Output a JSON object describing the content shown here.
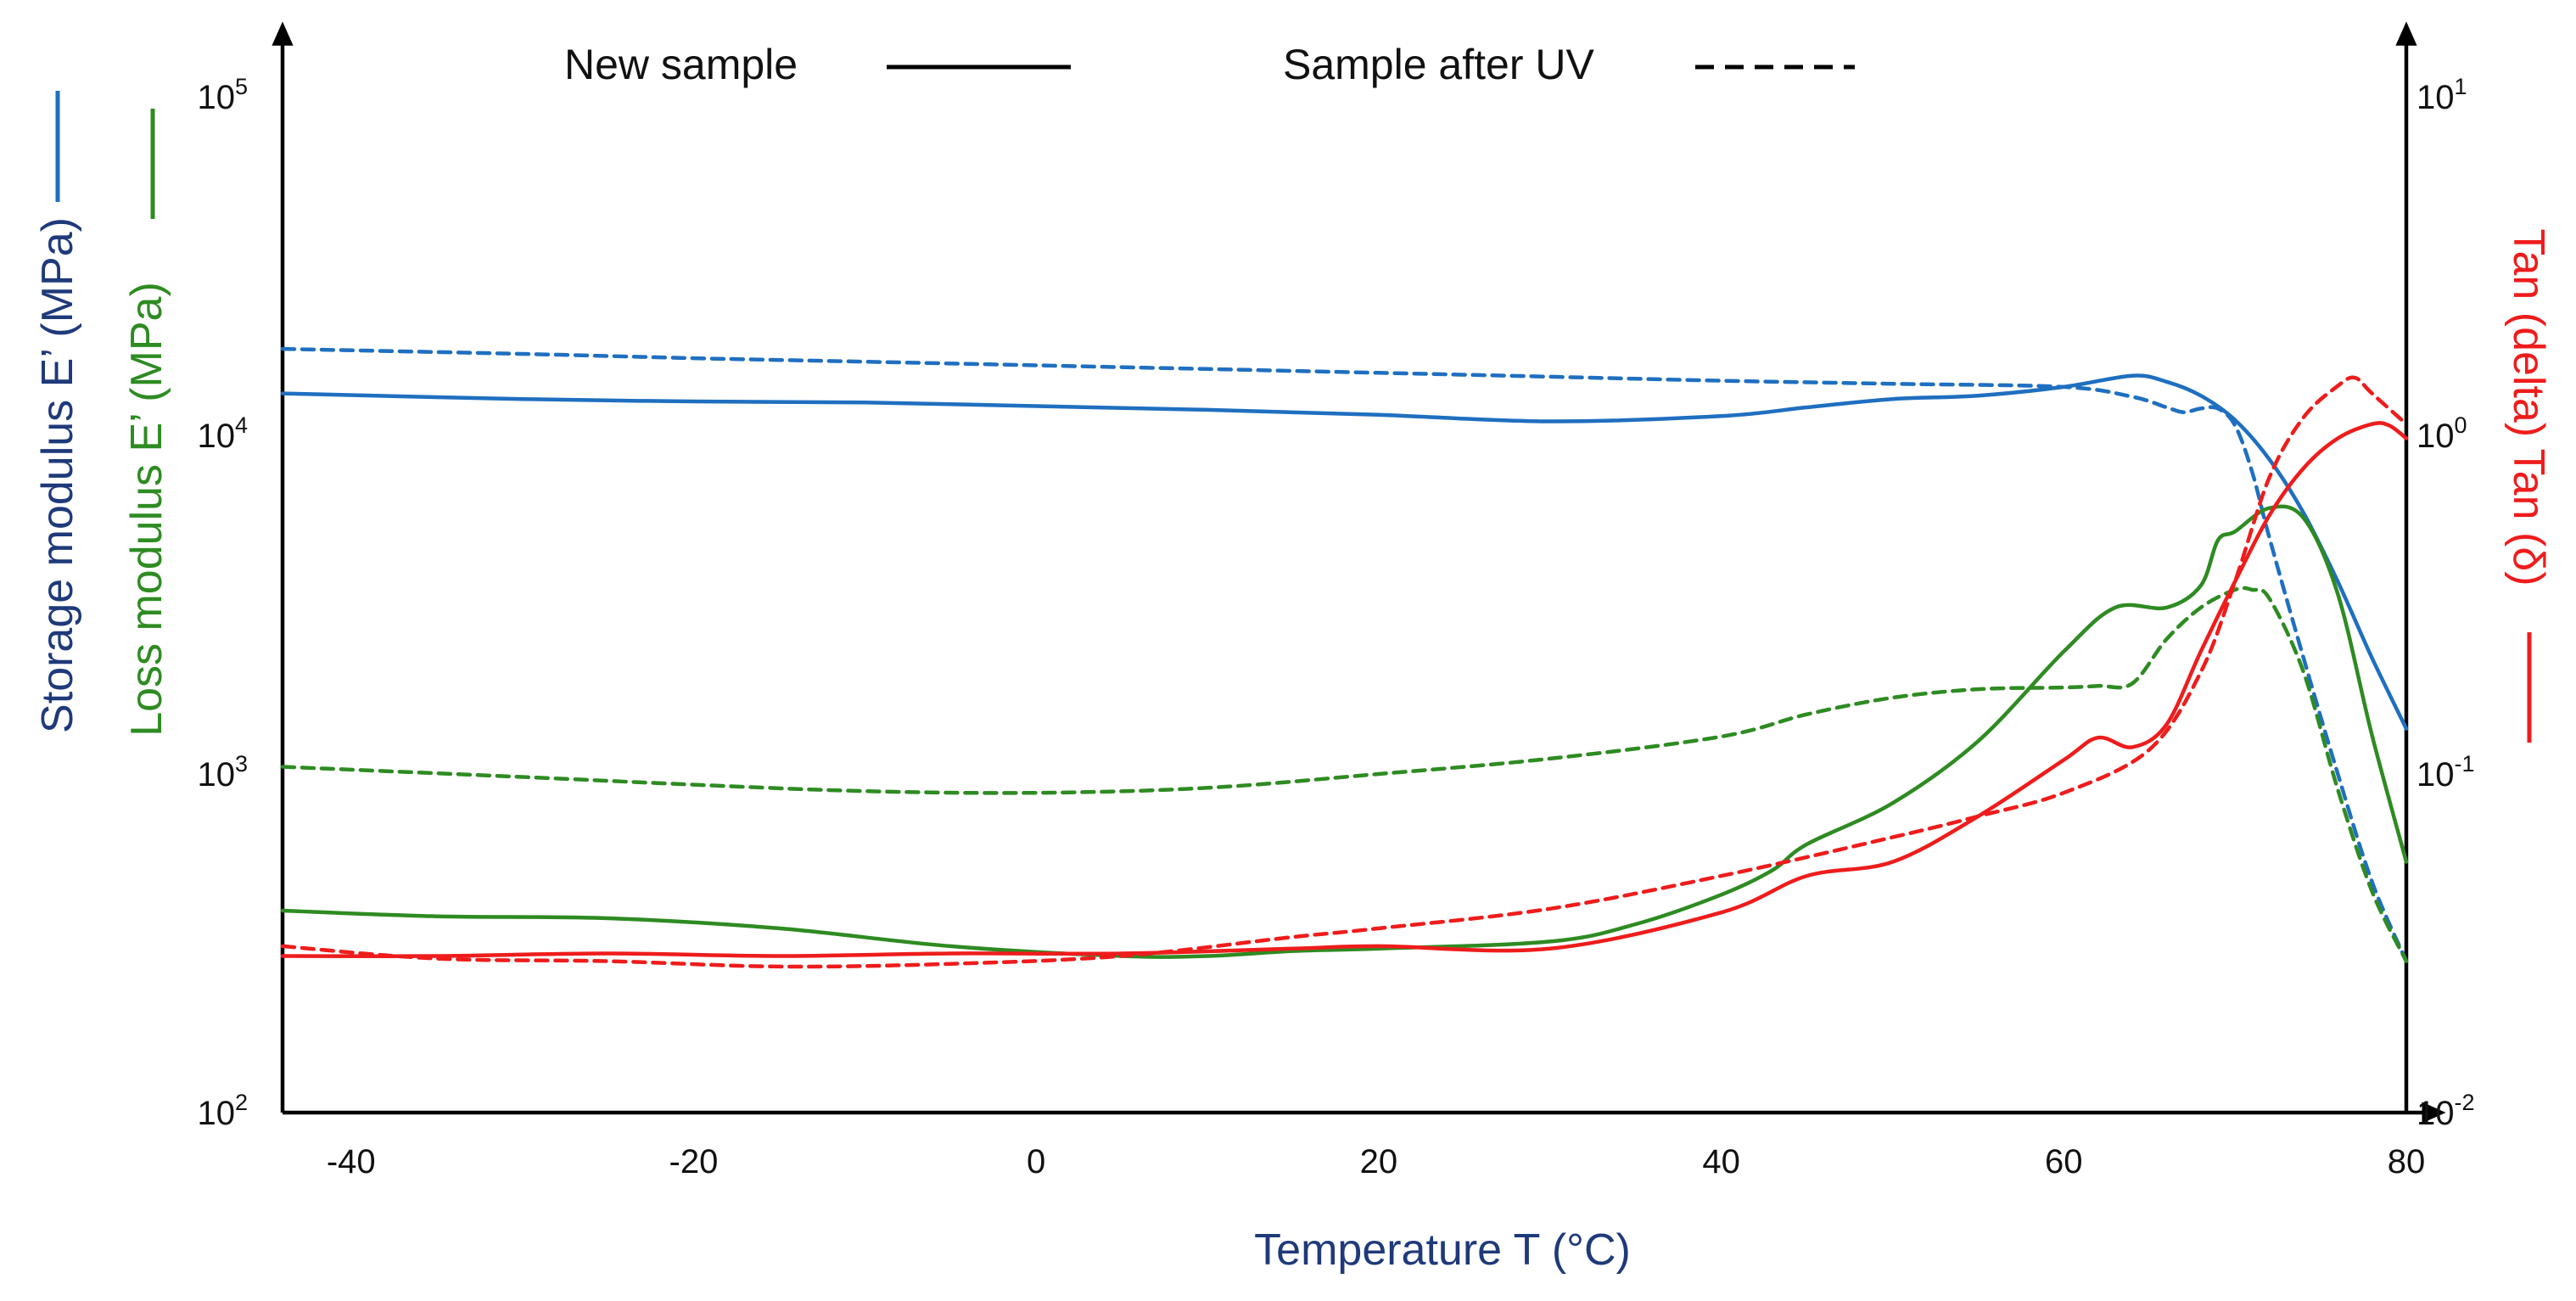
{
  "chart_data": {
    "type": "line",
    "title": "",
    "legend": {
      "solid_label": "New sample",
      "dashed_label": "Sample after UV",
      "placement": "top-center"
    },
    "colors": {
      "storage": "#1f6fc0",
      "loss": "#2e8b22",
      "tan": "#ee1c1c",
      "axis": "#000000",
      "title_navy": "#1f3a7a"
    },
    "xlabel": "Temperature T (°C)",
    "ylabel_left_storage": "Storage modulus E’ (MPa)",
    "ylabel_left_loss": "Loss modulus E’ (MPa)",
    "ylabel_right": "Tan (delta) Tan (δ)",
    "xlim": [
      -44,
      80
    ],
    "ylim_left": [
      100,
      100000
    ],
    "ylim_right": [
      0.01,
      10
    ],
    "yscale": "log",
    "x_ticks": [
      {
        "value": -40,
        "label": "-40"
      },
      {
        "value": -20,
        "label": "-20"
      },
      {
        "value": 0,
        "label": "0"
      },
      {
        "value": 20,
        "label": "20"
      },
      {
        "value": 40,
        "label": "40"
      },
      {
        "value": 60,
        "label": "60"
      },
      {
        "value": 80,
        "label": "80"
      }
    ],
    "y_left_ticks": [
      {
        "value": 100,
        "base": "10",
        "exp": "2"
      },
      {
        "value": 1000,
        "base": "10",
        "exp": "3"
      },
      {
        "value": 10000,
        "base": "10",
        "exp": "4"
      },
      {
        "value": 100000,
        "base": "10",
        "exp": "5"
      }
    ],
    "y_right_ticks": [
      {
        "value": 0.01,
        "base": "10",
        "exp": "-2"
      },
      {
        "value": 0.1,
        "base": "10",
        "exp": "-1"
      },
      {
        "value": 1,
        "base": "10",
        "exp": "0"
      },
      {
        "value": 10,
        "base": "10",
        "exp": "1"
      }
    ],
    "series": [
      {
        "name": "Storage modulus - New sample",
        "axis": "left",
        "color_key": "storage",
        "style": "solid",
        "x": [
          -44,
          -30,
          -20,
          -10,
          0,
          10,
          20,
          30,
          40,
          45,
          50,
          55,
          60,
          64,
          66,
          68,
          70,
          72,
          74,
          76,
          78,
          80
        ],
        "y": [
          13300,
          12800,
          12600,
          12500,
          12200,
          11900,
          11500,
          11000,
          11400,
          12100,
          12800,
          13100,
          13900,
          15000,
          14400,
          13100,
          11100,
          8500,
          5900,
          3700,
          2200,
          1360
        ]
      },
      {
        "name": "Storage modulus - Sample after UV",
        "axis": "left",
        "color_key": "storage",
        "style": "dashed",
        "x": [
          -44,
          -30,
          -20,
          -10,
          0,
          10,
          20,
          30,
          40,
          50,
          60,
          64,
          66,
          67,
          68,
          69,
          70,
          71,
          72,
          74,
          76,
          78,
          80
        ],
        "y": [
          18000,
          17400,
          16900,
          16500,
          16100,
          15700,
          15300,
          14900,
          14500,
          14200,
          13900,
          13000,
          12100,
          11700,
          12000,
          12000,
          10700,
          7800,
          5000,
          2200,
          1000,
          480,
          280
        ]
      },
      {
        "name": "Loss modulus - New sample",
        "axis": "left",
        "color_key": "loss",
        "style": "solid",
        "x": [
          -44,
          -35,
          -25,
          -15,
          -5,
          5,
          10,
          15,
          20,
          30,
          35,
          40,
          43,
          45,
          50,
          55,
          60,
          63,
          66,
          68,
          69,
          70,
          72,
          74,
          76,
          78,
          80
        ],
        "y": [
          395,
          380,
          375,
          350,
          310,
          290,
          290,
          300,
          305,
          320,
          360,
          440,
          520,
          620,
          820,
          1250,
          2300,
          3100,
          3100,
          3600,
          4900,
          5200,
          6100,
          5700,
          3400,
          1300,
          550
        ]
      },
      {
        "name": "Loss modulus - Sample after UV",
        "axis": "left",
        "color_key": "loss",
        "style": "dashed",
        "x": [
          -44,
          -30,
          -20,
          -10,
          0,
          10,
          20,
          30,
          40,
          45,
          50,
          55,
          60,
          62,
          64,
          66,
          68,
          70,
          71,
          72,
          74,
          76,
          78,
          80
        ],
        "y": [
          1050,
          980,
          930,
          890,
          880,
          910,
          1000,
          1110,
          1290,
          1500,
          1680,
          1780,
          1800,
          1820,
          1850,
          2500,
          3100,
          3500,
          3500,
          3300,
          2000,
          900,
          450,
          280
        ]
      },
      {
        "name": "Tan delta - New sample",
        "axis": "right",
        "color_key": "tan",
        "style": "solid",
        "x": [
          -44,
          -35,
          -25,
          -15,
          -5,
          5,
          15,
          20,
          30,
          40,
          45,
          50,
          55,
          60,
          62,
          64,
          66,
          68,
          70,
          72,
          74,
          76,
          78,
          79,
          80
        ],
        "y": [
          0.029,
          0.029,
          0.0295,
          0.029,
          0.0295,
          0.0295,
          0.0305,
          0.031,
          0.0305,
          0.039,
          0.05,
          0.055,
          0.075,
          0.11,
          0.128,
          0.12,
          0.14,
          0.23,
          0.37,
          0.58,
          0.8,
          0.98,
          1.08,
          1.07,
          0.98
        ]
      },
      {
        "name": "Tan delta - Sample after UV",
        "axis": "right",
        "color_key": "tan",
        "style": "dashed",
        "x": [
          -44,
          -35,
          -25,
          -15,
          -5,
          5,
          15,
          20,
          30,
          40,
          50,
          55,
          60,
          65,
          68,
          70,
          72,
          74,
          76,
          77,
          78,
          80
        ],
        "y": [
          0.031,
          0.0285,
          0.028,
          0.027,
          0.0275,
          0.029,
          0.033,
          0.035,
          0.04,
          0.05,
          0.065,
          0.075,
          0.088,
          0.118,
          0.2,
          0.37,
          0.75,
          1.13,
          1.4,
          1.48,
          1.33,
          1.08
        ]
      }
    ]
  }
}
